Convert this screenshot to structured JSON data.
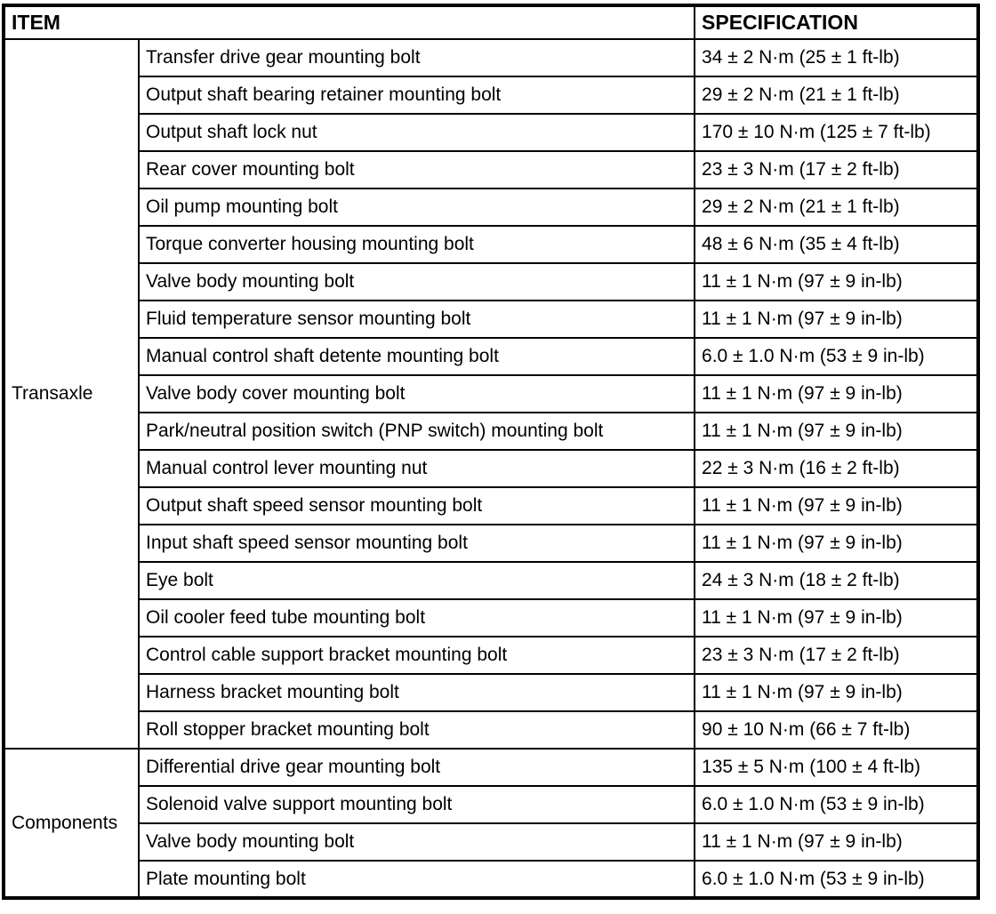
{
  "table": {
    "headers": {
      "item": "ITEM",
      "specification": "SPECIFICATION"
    },
    "sections": [
      {
        "category": "Transaxle",
        "rows": [
          {
            "item": "Transfer drive gear mounting bolt",
            "spec": "34 ± 2 N·m (25 ± 1 ft-lb)"
          },
          {
            "item": "Output shaft bearing retainer mounting bolt",
            "spec": "29 ± 2 N·m (21 ± 1 ft-lb)"
          },
          {
            "item": "Output shaft lock nut",
            "spec": "170 ± 10 N·m (125 ± 7 ft-lb)"
          },
          {
            "item": "Rear cover mounting bolt",
            "spec": "23 ± 3 N·m (17 ± 2 ft-lb)"
          },
          {
            "item": "Oil pump mounting bolt",
            "spec": "29 ± 2 N·m (21 ± 1 ft-lb)"
          },
          {
            "item": "Torque converter housing mounting bolt",
            "spec": "48 ± 6 N·m (35 ± 4 ft-lb)"
          },
          {
            "item": "Valve body mounting bolt",
            "spec": "11 ± 1 N·m (97 ± 9 in-lb)"
          },
          {
            "item": "Fluid temperature sensor mounting bolt",
            "spec": "11 ± 1 N·m (97 ± 9 in-lb)"
          },
          {
            "item": "Manual control shaft detente mounting bolt",
            "spec": "6.0 ± 1.0 N·m (53 ± 9 in-lb)"
          },
          {
            "item": "Valve body cover mounting bolt",
            "spec": "11 ± 1 N·m (97 ± 9 in-lb)"
          },
          {
            "item": "Park/neutral position switch (PNP switch) mounting bolt",
            "spec": "11 ± 1 N·m (97 ± 9 in-lb)"
          },
          {
            "item": "Manual control lever mounting nut",
            "spec": "22 ± 3 N·m (16 ± 2 ft-lb)"
          },
          {
            "item": "Output shaft speed sensor mounting bolt",
            "spec": "11 ± 1 N·m (97 ± 9 in-lb)"
          },
          {
            "item": "Input shaft speed sensor mounting bolt",
            "spec": "11 ± 1 N·m (97 ± 9 in-lb)"
          },
          {
            "item": "Eye bolt",
            "spec": "24 ± 3 N·m (18 ± 2 ft-lb)"
          },
          {
            "item": "Oil cooler feed tube mounting bolt",
            "spec": "11 ± 1 N·m (97 ± 9 in-lb)"
          },
          {
            "item": "Control cable support bracket mounting bolt",
            "spec": "23 ± 3 N·m (17 ± 2 ft-lb)"
          },
          {
            "item": "Harness bracket mounting bolt",
            "spec": "11 ± 1 N·m (97 ± 9 in-lb)"
          },
          {
            "item": "Roll stopper bracket mounting bolt",
            "spec": "90 ± 10 N·m (66 ± 7 ft-lb)"
          }
        ]
      },
      {
        "category": "Components",
        "rows": [
          {
            "item": "Differential drive gear mounting bolt",
            "spec": "135 ± 5 N·m (100 ± 4 ft-lb)"
          },
          {
            "item": "Solenoid valve support mounting bolt",
            "spec": "6.0 ± 1.0 N·m (53 ± 9 in-lb)"
          },
          {
            "item": "Valve body mounting bolt",
            "spec": "11 ± 1 N·m (97 ± 9 in-lb)"
          },
          {
            "item": "Plate mounting bolt",
            "spec": "6.0 ± 1.0 N·m (53 ± 9 in-lb)"
          }
        ]
      }
    ]
  }
}
